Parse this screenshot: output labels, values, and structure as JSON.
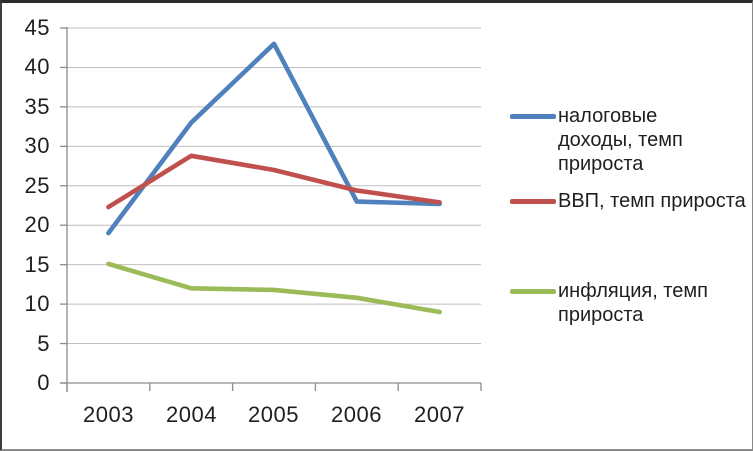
{
  "chart_data": {
    "type": "line",
    "title": "",
    "categories": [
      "2003",
      "2004",
      "2005",
      "2006",
      "2007"
    ],
    "series": [
      {
        "name": "налоговые доходы, темп прироста",
        "color": "#4F81BD",
        "values": [
          19,
          33,
          43,
          23,
          22.7
        ]
      },
      {
        "name": "ВВП, темп прироста",
        "color": "#C0504D",
        "values": [
          22.3,
          28.8,
          27,
          24.4,
          22.9
        ]
      },
      {
        "name": "инфляция, темп прироста",
        "color": "#9BBB59",
        "values": [
          15.1,
          12,
          11.8,
          10.8,
          9
        ]
      }
    ],
    "xlabel": "",
    "ylabel": "",
    "ylim": [
      0,
      45
    ],
    "y_tick_step": 5,
    "y_tick_labels": [
      "45",
      "40",
      "35",
      "30",
      "25",
      "20",
      "15",
      "10",
      "5",
      "0"
    ],
    "grid": true,
    "gridline_color": "#BFBFBF",
    "axis_color": "#8C8C8C",
    "legend_position": "right"
  },
  "legend": {
    "items": [
      {
        "series": 0,
        "color": "#4F81BD",
        "lines": [
          "налоговые",
          "доходы, темп",
          "прироста"
        ]
      },
      {
        "series": 1,
        "color": "#C0504D",
        "lines": [
          "ВВП, темп прироста"
        ]
      },
      {
        "series": 2,
        "color": "#9BBB59",
        "lines": [
          "инфляция, темп",
          "прироста"
        ]
      }
    ]
  }
}
